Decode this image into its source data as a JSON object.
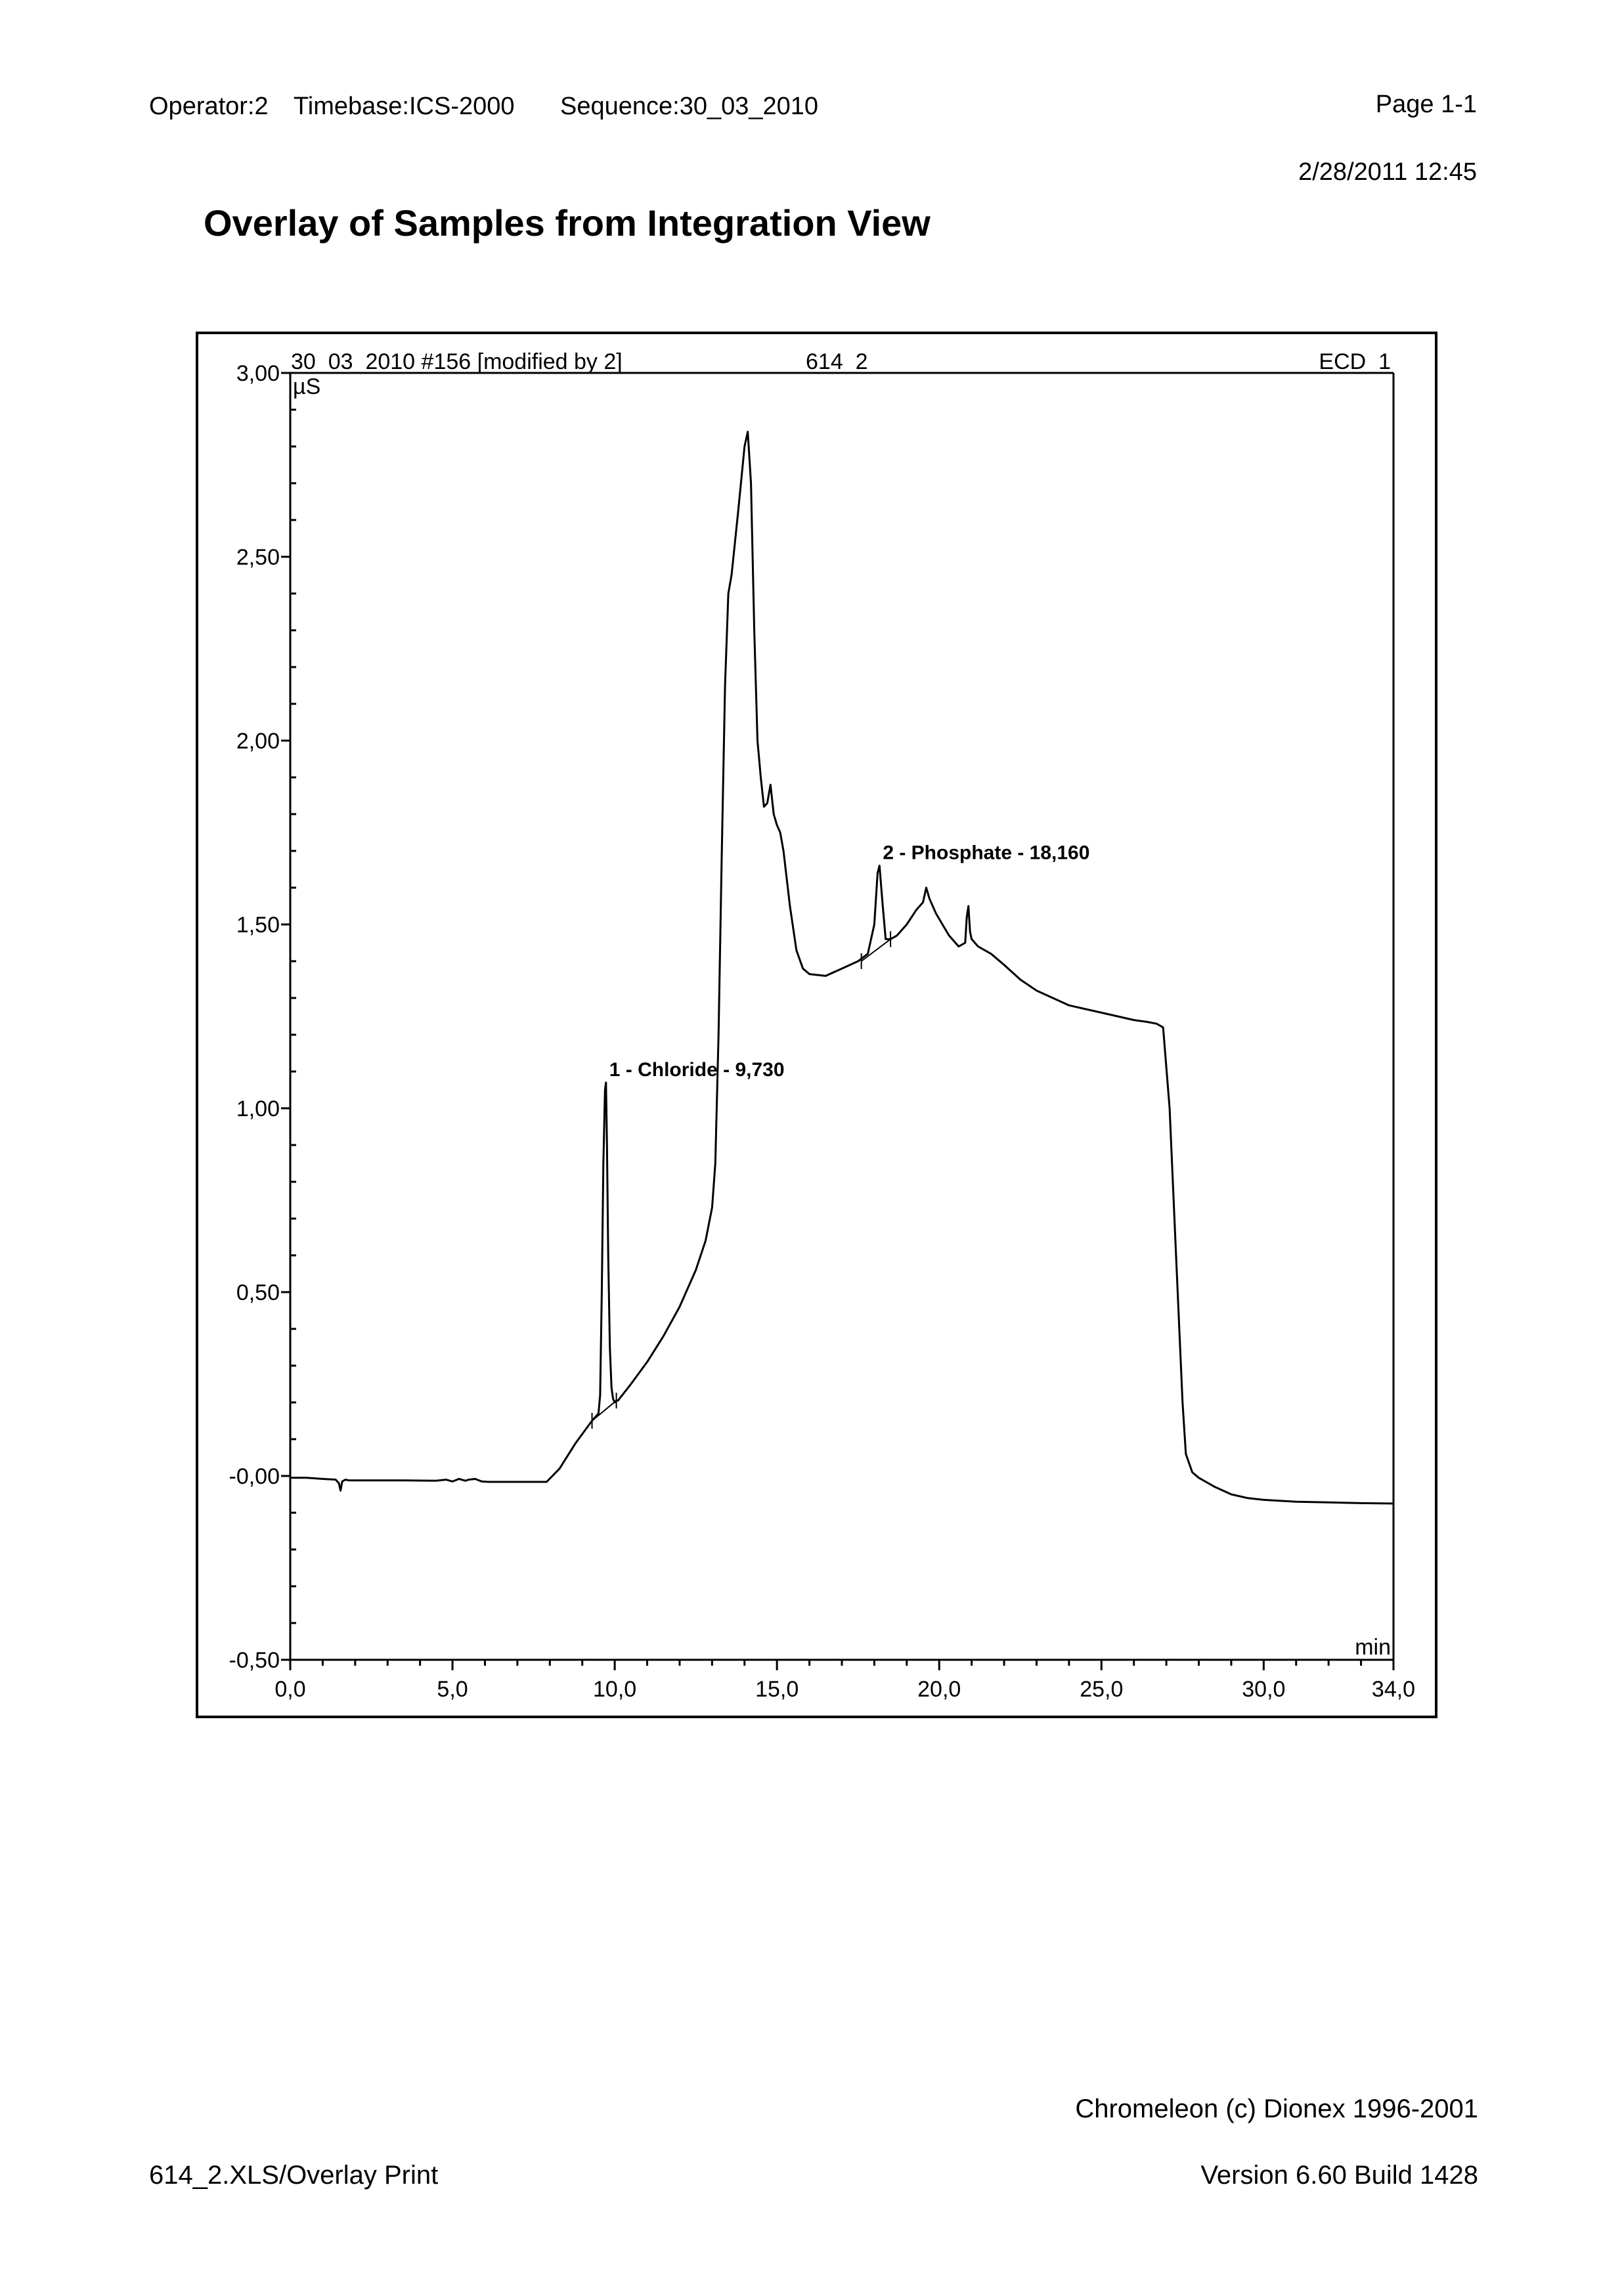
{
  "header": {
    "operator": "Operator:2",
    "timebase": "Timebase:ICS-2000",
    "sequence": "Sequence:30_03_2010",
    "page": "Page 1-1",
    "datetime": "2/28/2011  12:45"
  },
  "title": "Overlay of Samples from Integration View",
  "footer": {
    "software": "Chromeleon (c) Dionex 1996-2001",
    "file": "614_2.XLS/Overlay Print",
    "version": "Version 6.60 Build 1428"
  },
  "chart_data": {
    "type": "line",
    "panel_left": "30_03_2010 #156 [modified by 2]",
    "panel_center": "614_2",
    "panel_right": "ECD_1",
    "ylabel": "µS",
    "xlabel": "min",
    "xlim": [
      0,
      34
    ],
    "ylim": [
      -0.5,
      3.0
    ],
    "x_ticks": [
      "0,0",
      "5,0",
      "10,0",
      "15,0",
      "20,0",
      "25,0",
      "30,0",
      "34,0"
    ],
    "x_tick_values": [
      0,
      5,
      10,
      15,
      20,
      25,
      30,
      34
    ],
    "y_ticks": [
      "3,00",
      "2,50",
      "2,00",
      "1,50",
      "1,00",
      "0,50",
      "-0,00",
      "-0,50"
    ],
    "y_tick_values": [
      3.0,
      2.5,
      2.0,
      1.5,
      1.0,
      0.5,
      0.0,
      -0.5
    ],
    "color": "#000000",
    "series": [
      {
        "x": [
          0,
          0.5,
          1.0,
          1.4,
          1.5,
          1.55,
          1.6,
          1.7,
          1.8,
          2.5,
          3.5,
          4.5,
          4.8,
          5.0,
          5.2,
          5.4,
          5.5,
          5.7,
          5.9,
          6.1,
          6.5,
          7.0,
          7.5,
          7.9,
          8.3,
          8.8,
          9.3,
          9.5,
          9.55,
          9.6,
          9.65,
          9.7,
          9.73,
          9.76,
          9.8,
          9.85,
          9.9,
          9.95,
          10.0,
          10.05,
          10.1,
          10.5,
          11.0,
          11.5,
          12.0,
          12.5,
          12.8,
          13.0,
          13.1,
          13.2,
          13.3,
          13.4,
          13.5,
          13.6,
          13.8,
          14.0,
          14.1,
          14.2,
          14.3,
          14.4,
          14.5,
          14.6,
          14.7,
          14.8,
          14.9,
          15.0,
          15.1,
          15.2,
          15.4,
          15.6,
          15.8,
          16.0,
          16.5,
          17.0,
          17.5,
          17.8,
          18.0,
          18.1,
          18.16,
          18.25,
          18.35,
          18.5,
          18.7,
          19.0,
          19.3,
          19.5,
          19.6,
          19.7,
          19.9,
          20.1,
          20.3,
          20.6,
          20.8,
          20.85,
          20.9,
          20.95,
          21.0,
          21.2,
          21.6,
          22.0,
          22.5,
          23.0,
          23.5,
          24.0,
          25.0,
          26.0,
          26.4,
          26.7,
          26.9,
          27.1,
          27.3,
          27.5,
          27.6,
          27.8,
          28.0,
          28.5,
          29.0,
          29.5,
          30.0,
          31.0,
          32.0,
          33.0,
          34.0
        ],
        "y": [
          -0.005,
          -0.005,
          -0.008,
          -0.01,
          -0.02,
          -0.04,
          -0.015,
          -0.01,
          -0.012,
          -0.012,
          -0.012,
          -0.013,
          -0.01,
          -0.015,
          -0.008,
          -0.013,
          -0.01,
          -0.008,
          -0.015,
          -0.016,
          -0.016,
          -0.016,
          -0.016,
          -0.016,
          0.02,
          0.09,
          0.15,
          0.17,
          0.22,
          0.5,
          0.85,
          1.05,
          1.07,
          0.9,
          0.6,
          0.35,
          0.24,
          0.21,
          0.2,
          0.205,
          0.205,
          0.25,
          0.31,
          0.38,
          0.46,
          0.56,
          0.64,
          0.73,
          0.85,
          1.2,
          1.7,
          2.15,
          2.4,
          2.45,
          2.62,
          2.8,
          2.84,
          2.7,
          2.3,
          2.0,
          1.9,
          1.82,
          1.83,
          1.88,
          1.8,
          1.77,
          1.75,
          1.7,
          1.55,
          1.43,
          1.38,
          1.365,
          1.36,
          1.38,
          1.4,
          1.42,
          1.5,
          1.64,
          1.66,
          1.56,
          1.46,
          1.46,
          1.47,
          1.5,
          1.54,
          1.56,
          1.6,
          1.57,
          1.53,
          1.5,
          1.47,
          1.44,
          1.45,
          1.52,
          1.55,
          1.48,
          1.46,
          1.44,
          1.42,
          1.39,
          1.35,
          1.32,
          1.3,
          1.28,
          1.26,
          1.24,
          1.235,
          1.23,
          1.22,
          1.0,
          0.6,
          0.2,
          0.06,
          0.01,
          -0.005,
          -0.03,
          -0.05,
          -0.06,
          -0.065,
          -0.07,
          -0.072,
          -0.074,
          -0.075
        ]
      }
    ],
    "baselines": [
      {
        "x": [
          9.3,
          10.05
        ],
        "y": [
          0.15,
          0.205
        ]
      },
      {
        "x": [
          17.6,
          18.5
        ],
        "y": [
          1.4,
          1.46
        ]
      }
    ],
    "peaks": [
      {
        "label": "1 - Chloride - 9,730",
        "x": 9.73,
        "y": 1.07
      },
      {
        "label": "2 - Phosphate - 18,160",
        "x": 18.16,
        "y": 1.66
      }
    ]
  }
}
